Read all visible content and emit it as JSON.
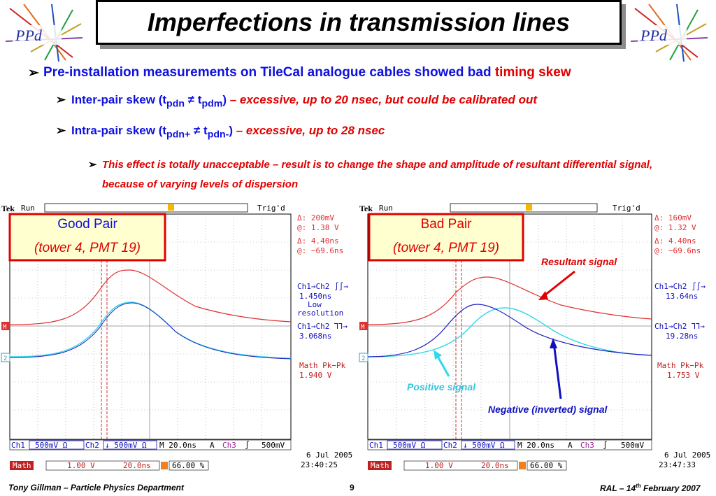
{
  "title": "Imperfections in transmission lines",
  "logo": {
    "text": "PPd"
  },
  "bullets": {
    "b1_main": "Pre-installation measurements on TileCal analogue cables showed bad ",
    "b1_red": "timing skew",
    "b2_a": "Inter-pair skew (t",
    "b2_sub1": "pdn",
    "b2_b": " ≠ t",
    "b2_sub2": "pdm",
    "b2_c": ") ",
    "b2_red": "– excessive, up to 20 nsec, but could be calibrated out",
    "b3_a": "Intra-pair skew (t",
    "b3_sub1": "pdn+",
    "b3_b": " ≠ t",
    "b3_sub2": "pdn-",
    "b3_c": ") ",
    "b3_red": "–  excessive, up to 28 nsec",
    "b4": "This effect is totally unacceptable – result is to change the shape and amplitude of resultant differential signal, because of varying levels of dispersion"
  },
  "scopes": {
    "left": {
      "brand": "Tek",
      "run": "Run",
      "trig": "Trig'd",
      "label1": "Good Pair",
      "label2": "(tower 4, PMT 19)",
      "r1a": "Δ:   200mV",
      "r1b": "@:   1.38 V",
      "r2a": "Δ:   4.40ns",
      "r2b": "@:  −69.6ns",
      "r3a": "Ch1→Ch2 ∫∫→",
      "r3b": "1.450ns",
      "r3c": "Low",
      "r3d": "resolution",
      "r4a": "Ch1→Ch2 ⅂⅂→",
      "r4b": "3.068ns",
      "r5a": "Math Pk−Pk",
      "r5b": "1.940 V",
      "b1": "Ch1",
      "b2": "500mV Ω",
      "b3": "Ch2",
      "b4": "↓ 500mV Ω",
      "b5": "M 20.0ns",
      "b6": "A",
      "b7": "Ch3",
      "b8": "∫",
      "b9": "500mV",
      "m1": "Math",
      "m2": "1.00 V",
      "m3": "20.0ns",
      "m4": "66.00 %",
      "date": "6 Jul   2005",
      "time": "23:40:25"
    },
    "right": {
      "brand": "Tek",
      "run": "Run",
      "trig": "Trig'd",
      "label1": "Bad Pair",
      "label2": "(tower 4, PMT 19)",
      "r1a": "Δ:   160mV",
      "r1b": "@:   1.32 V",
      "r2a": "Δ:   4.40ns",
      "r2b": "@:  −69.6ns",
      "r3a": "Ch1→Ch2 ∫∫→",
      "r3b": "13.64ns",
      "r4a": "Ch1→Ch2 ⅂⅂→",
      "r4b": "19.28ns",
      "r5a": "Math Pk−Pk",
      "r5b": "1.753 V",
      "b1": "Ch1",
      "b2": "500mV Ω",
      "b3": "Ch2",
      "b4": "↓ 500mV Ω",
      "b5": "M 20.0ns",
      "b6": "A",
      "b7": "Ch3",
      "b8": "∫",
      "b9": "500mV",
      "m1": "Math",
      "m2": "1.00 V",
      "m3": "20.0ns",
      "m4": "66.00 %",
      "date": "6 Jul   2005",
      "time": "23:47:33",
      "ann_resultant": "Resultant signal",
      "ann_positive": "Positive signal",
      "ann_negative": "Negative (inverted) signal"
    }
  },
  "footer": {
    "left": "Tony Gillman – Particle Physics Department",
    "center": "9",
    "right_a": "RAL – 14",
    "right_sup": "th",
    "right_b": " February 2007"
  },
  "colors": {
    "accent_blue": "#1010e0",
    "accent_red": "#e00000",
    "trace_red": "#e03030",
    "trace_blue": "#2020c0",
    "trace_cyan": "#30d8e8"
  }
}
